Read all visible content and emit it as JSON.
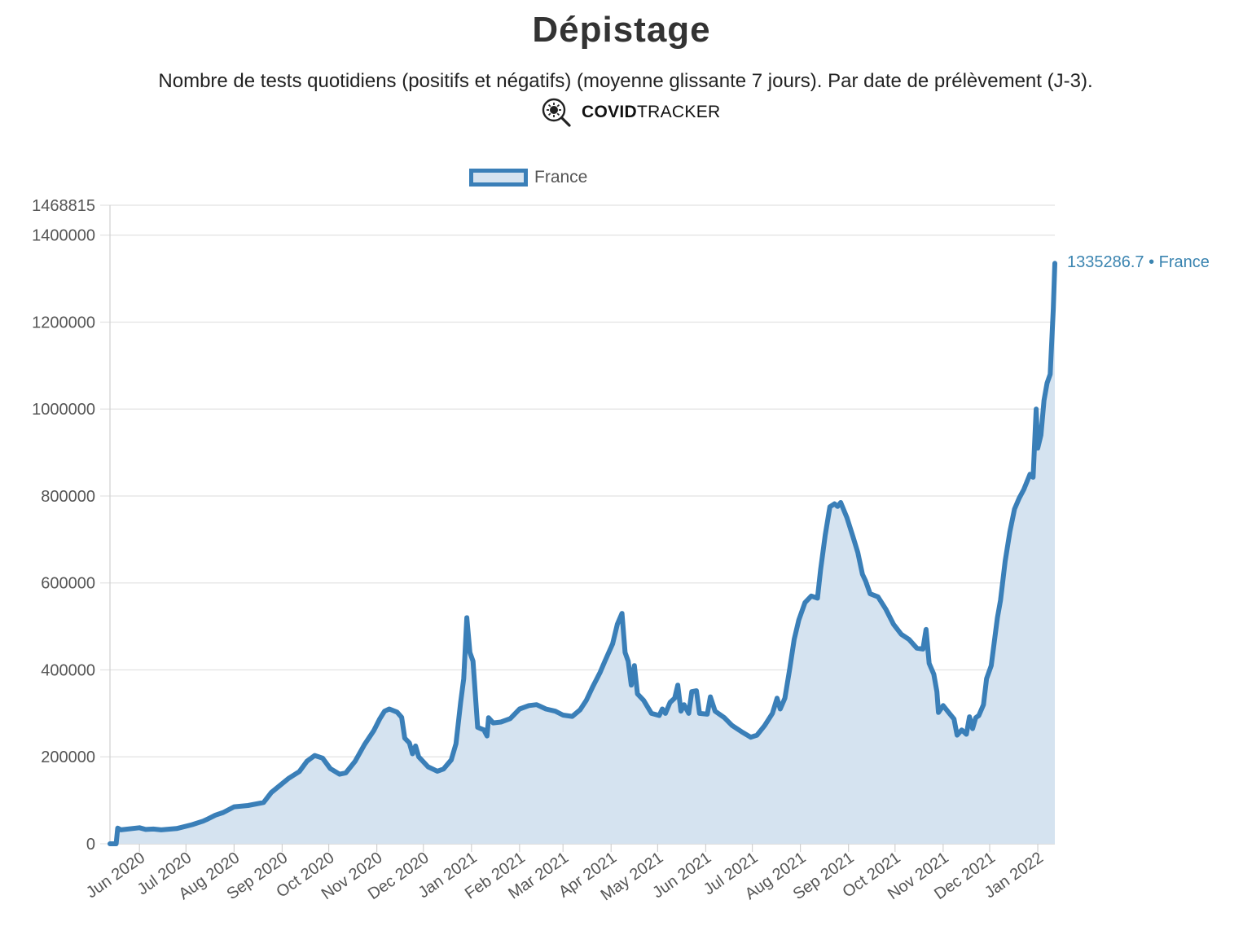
{
  "header": {
    "title": "Dépistage",
    "subtitle": "Nombre de tests quotidiens (positifs et négatifs) (moyenne glissante 7 jours). Par date de prélèvement (J-3).",
    "brand_bold": "COVID",
    "brand_light": "TRACKER",
    "brand_icon": "virus-magnifier-icon"
  },
  "colors": {
    "line": "#3a7fb8",
    "fill": "#d5e3f0",
    "grid": "#e2e2e2",
    "last_label": "#3a84b0"
  },
  "last_value_label": "1335286.7 • France",
  "chart_data": {
    "type": "area",
    "series": [
      {
        "name": "France",
        "points": [
          [
            "2020-05-13",
            0
          ],
          [
            "2020-05-17",
            0
          ],
          [
            "2020-05-18",
            36000
          ],
          [
            "2020-05-20",
            32000
          ],
          [
            "2020-06-01",
            37000
          ],
          [
            "2020-06-05",
            33000
          ],
          [
            "2020-06-10",
            34000
          ],
          [
            "2020-06-15",
            32000
          ],
          [
            "2020-06-25",
            35000
          ],
          [
            "2020-07-05",
            44000
          ],
          [
            "2020-07-12",
            52000
          ],
          [
            "2020-07-15",
            57000
          ],
          [
            "2020-07-20",
            66000
          ],
          [
            "2020-07-25",
            72000
          ],
          [
            "2020-08-01",
            85000
          ],
          [
            "2020-08-10",
            88000
          ],
          [
            "2020-08-20",
            95000
          ],
          [
            "2020-08-25",
            118000
          ],
          [
            "2020-09-05",
            150000
          ],
          [
            "2020-09-12",
            166000
          ],
          [
            "2020-09-17",
            190000
          ],
          [
            "2020-09-22",
            203000
          ],
          [
            "2020-09-27",
            197000
          ],
          [
            "2020-10-02",
            173000
          ],
          [
            "2020-10-08",
            160000
          ],
          [
            "2020-10-12",
            163000
          ],
          [
            "2020-10-18",
            190000
          ],
          [
            "2020-10-24",
            228000
          ],
          [
            "2020-10-30",
            260000
          ],
          [
            "2020-11-03",
            288000
          ],
          [
            "2020-11-06",
            305000
          ],
          [
            "2020-11-09",
            310000
          ],
          [
            "2020-11-14",
            303000
          ],
          [
            "2020-11-17",
            291000
          ],
          [
            "2020-11-19",
            243000
          ],
          [
            "2020-11-22",
            232000
          ],
          [
            "2020-11-24",
            207000
          ],
          [
            "2020-11-26",
            225000
          ],
          [
            "2020-11-28",
            200000
          ],
          [
            "2020-12-04",
            177000
          ],
          [
            "2020-12-10",
            167000
          ],
          [
            "2020-12-14",
            172000
          ],
          [
            "2020-12-19",
            193000
          ],
          [
            "2020-12-22",
            230000
          ],
          [
            "2020-12-25",
            325000
          ],
          [
            "2020-12-27",
            380000
          ],
          [
            "2020-12-29",
            520000
          ],
          [
            "2020-12-31",
            440000
          ],
          [
            "2021-01-02",
            420000
          ],
          [
            "2021-01-05",
            268000
          ],
          [
            "2021-01-09",
            262000
          ],
          [
            "2021-01-11",
            248000
          ],
          [
            "2021-01-12",
            290000
          ],
          [
            "2021-01-15",
            278000
          ],
          [
            "2021-01-20",
            280000
          ],
          [
            "2021-01-26",
            288000
          ],
          [
            "2021-02-01",
            310000
          ],
          [
            "2021-02-07",
            318000
          ],
          [
            "2021-02-12",
            320000
          ],
          [
            "2021-02-18",
            310000
          ],
          [
            "2021-02-24",
            305000
          ],
          [
            "2021-03-01",
            296000
          ],
          [
            "2021-03-07",
            293000
          ],
          [
            "2021-03-12",
            308000
          ],
          [
            "2021-03-16",
            330000
          ],
          [
            "2021-03-20",
            360000
          ],
          [
            "2021-03-25",
            395000
          ],
          [
            "2021-03-28",
            420000
          ],
          [
            "2021-04-02",
            460000
          ],
          [
            "2021-04-05",
            505000
          ],
          [
            "2021-04-08",
            530000
          ],
          [
            "2021-04-10",
            440000
          ],
          [
            "2021-04-12",
            420000
          ],
          [
            "2021-04-14",
            365000
          ],
          [
            "2021-04-16",
            410000
          ],
          [
            "2021-04-18",
            345000
          ],
          [
            "2021-04-22",
            330000
          ],
          [
            "2021-04-27",
            300000
          ],
          [
            "2021-05-02",
            295000
          ],
          [
            "2021-05-04",
            310000
          ],
          [
            "2021-05-06",
            300000
          ],
          [
            "2021-05-09",
            325000
          ],
          [
            "2021-05-12",
            335000
          ],
          [
            "2021-05-14",
            365000
          ],
          [
            "2021-05-16",
            305000
          ],
          [
            "2021-05-18",
            320000
          ],
          [
            "2021-05-21",
            300000
          ],
          [
            "2021-05-23",
            350000
          ],
          [
            "2021-05-26",
            352000
          ],
          [
            "2021-05-28",
            300000
          ],
          [
            "2021-06-02",
            298000
          ],
          [
            "2021-06-04",
            338000
          ],
          [
            "2021-06-07",
            305000
          ],
          [
            "2021-06-13",
            290000
          ],
          [
            "2021-06-18",
            272000
          ],
          [
            "2021-06-24",
            258000
          ],
          [
            "2021-06-30",
            245000
          ],
          [
            "2021-07-04",
            250000
          ],
          [
            "2021-07-09",
            272000
          ],
          [
            "2021-07-14",
            300000
          ],
          [
            "2021-07-17",
            335000
          ],
          [
            "2021-07-19",
            310000
          ],
          [
            "2021-07-22",
            335000
          ],
          [
            "2021-07-25",
            400000
          ],
          [
            "2021-07-28",
            470000
          ],
          [
            "2021-07-31",
            515000
          ],
          [
            "2021-08-04",
            555000
          ],
          [
            "2021-08-08",
            570000
          ],
          [
            "2021-08-12",
            565000
          ],
          [
            "2021-08-14",
            630000
          ],
          [
            "2021-08-17",
            710000
          ],
          [
            "2021-08-20",
            775000
          ],
          [
            "2021-08-23",
            782000
          ],
          [
            "2021-08-25",
            776000
          ],
          [
            "2021-08-27",
            785000
          ],
          [
            "2021-08-31",
            750000
          ],
          [
            "2021-09-04",
            705000
          ],
          [
            "2021-09-07",
            670000
          ],
          [
            "2021-09-10",
            620000
          ],
          [
            "2021-09-12",
            605000
          ],
          [
            "2021-09-15",
            575000
          ],
          [
            "2021-09-20",
            568000
          ],
          [
            "2021-09-25",
            540000
          ],
          [
            "2021-09-30",
            505000
          ],
          [
            "2021-10-05",
            482000
          ],
          [
            "2021-10-10",
            470000
          ],
          [
            "2021-10-15",
            450000
          ],
          [
            "2021-10-19",
            448000
          ],
          [
            "2021-10-21",
            493000
          ],
          [
            "2021-10-23",
            415000
          ],
          [
            "2021-10-26",
            390000
          ],
          [
            "2021-10-28",
            350000
          ],
          [
            "2021-10-29",
            302000
          ],
          [
            "2021-11-01",
            318000
          ],
          [
            "2021-11-05",
            300000
          ],
          [
            "2021-11-08",
            287000
          ],
          [
            "2021-11-10",
            250000
          ],
          [
            "2021-11-13",
            262000
          ],
          [
            "2021-11-16",
            252000
          ],
          [
            "2021-11-18",
            292000
          ],
          [
            "2021-11-20",
            265000
          ],
          [
            "2021-11-22",
            290000
          ],
          [
            "2021-11-24",
            295000
          ],
          [
            "2021-11-27",
            320000
          ],
          [
            "2021-11-29",
            380000
          ],
          [
            "2021-12-02",
            410000
          ],
          [
            "2021-12-06",
            520000
          ],
          [
            "2021-12-08",
            560000
          ],
          [
            "2021-12-11",
            650000
          ],
          [
            "2021-12-14",
            718000
          ],
          [
            "2021-12-17",
            770000
          ],
          [
            "2021-12-20",
            795000
          ],
          [
            "2021-12-23",
            815000
          ],
          [
            "2021-12-27",
            850000
          ],
          [
            "2021-12-29",
            843000
          ],
          [
            "2021-12-31",
            1000000
          ],
          [
            "2022-01-01",
            910000
          ],
          [
            "2022-01-03",
            940000
          ],
          [
            "2022-01-05",
            1020000
          ],
          [
            "2022-01-07",
            1060000
          ],
          [
            "2022-01-09",
            1080000
          ],
          [
            "2022-01-11",
            1230000
          ],
          [
            "2022-01-12",
            1335286.7
          ]
        ]
      }
    ],
    "ylim": [
      0,
      1468815
    ],
    "y_ticks": [
      "0",
      "200000",
      "400000",
      "600000",
      "800000",
      "1000000",
      "1200000",
      "1400000",
      "1468815"
    ],
    "x_range": [
      "2020-05-13",
      "2022-01-12"
    ],
    "x_ticks": [
      {
        "date": "2020-06-01",
        "label": "Jun 2020"
      },
      {
        "date": "2020-07-01",
        "label": "Jul 2020"
      },
      {
        "date": "2020-08-01",
        "label": "Aug 2020"
      },
      {
        "date": "2020-09-01",
        "label": "Sep 2020"
      },
      {
        "date": "2020-10-01",
        "label": "Oct 2020"
      },
      {
        "date": "2020-11-01",
        "label": "Nov 2020"
      },
      {
        "date": "2020-12-01",
        "label": "Dec 2020"
      },
      {
        "date": "2021-01-01",
        "label": "Jan 2021"
      },
      {
        "date": "2021-02-01",
        "label": "Feb 2021"
      },
      {
        "date": "2021-03-01",
        "label": "Mar 2021"
      },
      {
        "date": "2021-04-01",
        "label": "Apr 2021"
      },
      {
        "date": "2021-05-01",
        "label": "May 2021"
      },
      {
        "date": "2021-06-01",
        "label": "Jun 2021"
      },
      {
        "date": "2021-07-01",
        "label": "Jul 2021"
      },
      {
        "date": "2021-08-01",
        "label": "Aug 2021"
      },
      {
        "date": "2021-09-01",
        "label": "Sep 2021"
      },
      {
        "date": "2021-10-01",
        "label": "Oct 2021"
      },
      {
        "date": "2021-11-01",
        "label": "Nov 2021"
      },
      {
        "date": "2021-12-01",
        "label": "Dec 2021"
      },
      {
        "date": "2022-01-01",
        "label": "Jan 2022"
      }
    ],
    "grid": true,
    "legend": "top"
  }
}
